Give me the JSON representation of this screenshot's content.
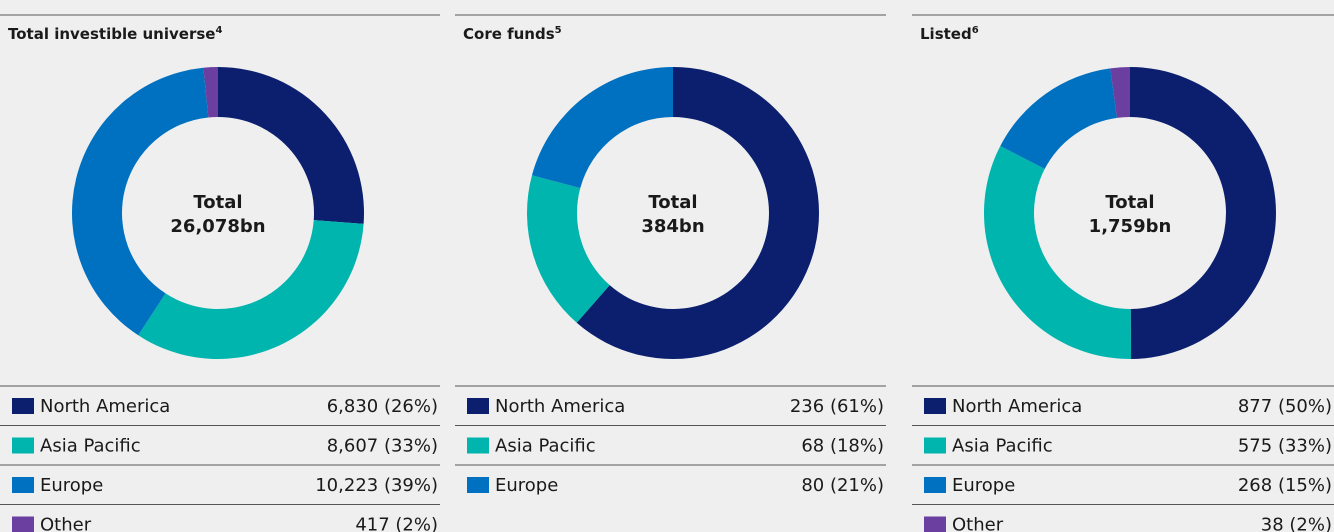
{
  "chart_data": [
    {
      "type": "donut",
      "title": "Total investible universe",
      "title_note": "4",
      "center_label": "Total",
      "center_value": "26,078bn",
      "categories": [
        "North America",
        "Asia Pacific",
        "Europe",
        "Other"
      ],
      "values": [
        6830,
        8607,
        10223,
        417
      ],
      "value_labels": [
        "6,830 (26%)",
        "8,607 (33%)",
        "10,223 (39%)",
        "417 (2%)"
      ],
      "colors": [
        "#0b1f6e",
        "#00b5ad",
        "#0070c0",
        "#6a3fa0"
      ]
    },
    {
      "type": "donut",
      "title": "Core funds",
      "title_note": "5",
      "center_label": "Total",
      "center_value": "384bn",
      "categories": [
        "North America",
        "Asia Pacific",
        "Europe"
      ],
      "values": [
        236,
        68,
        80
      ],
      "value_labels": [
        "236 (61%)",
        "68 (18%)",
        "80 (21%)"
      ],
      "colors": [
        "#0b1f6e",
        "#00b5ad",
        "#0070c0"
      ]
    },
    {
      "type": "donut",
      "title": "Listed",
      "title_note": "6",
      "center_label": "Total",
      "center_value": "1,759bn",
      "categories": [
        "North America",
        "Asia Pacific",
        "Europe",
        "Other"
      ],
      "values": [
        877,
        575,
        268,
        38
      ],
      "value_labels": [
        "877 (50%)",
        "575 (33%)",
        "268 (15%)",
        "38 (2%)"
      ],
      "colors": [
        "#0b1f6e",
        "#00b5ad",
        "#0070c0",
        "#6a3fa0"
      ]
    }
  ]
}
